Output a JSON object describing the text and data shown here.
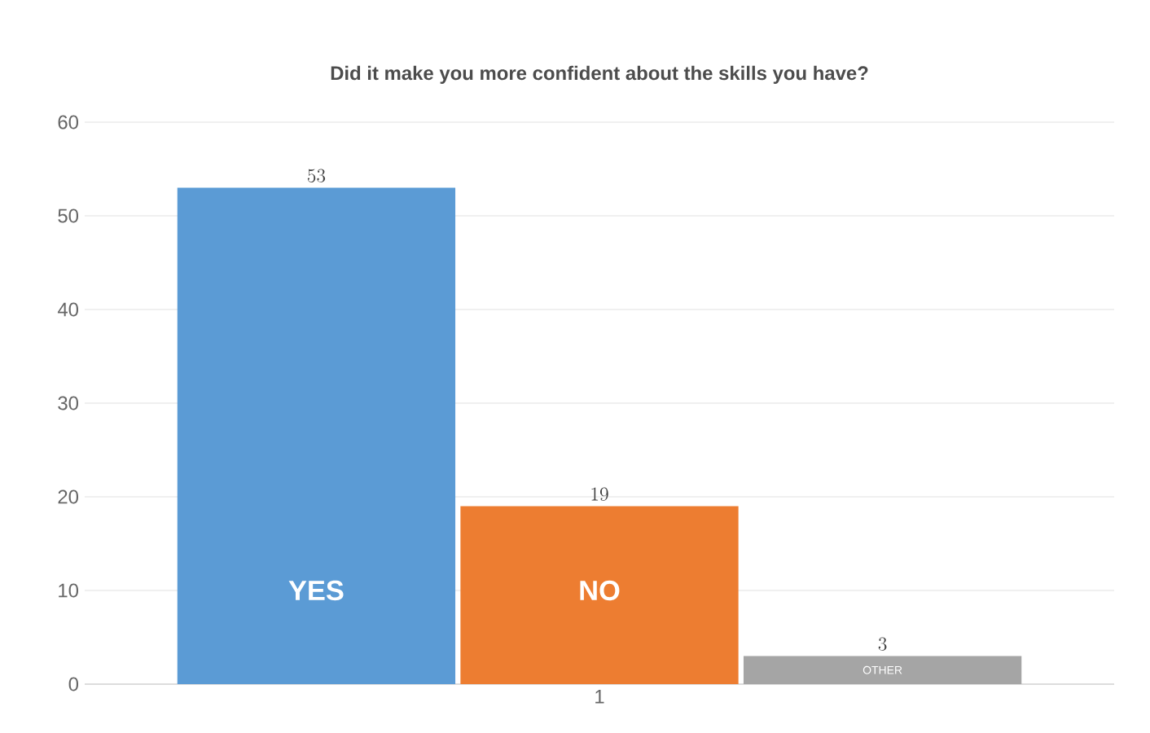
{
  "chart_data": {
    "type": "bar",
    "title": "Did it make you more confident about the skills you have?",
    "categories": [
      "1"
    ],
    "series": [
      {
        "name": "YES",
        "color": "#5b9bd5",
        "values": [
          53
        ]
      },
      {
        "name": "NO",
        "color": "#ed7d31",
        "values": [
          19
        ]
      },
      {
        "name": "OTHER",
        "color": "#a5a5a5",
        "values": [
          3
        ]
      }
    ],
    "ylim": [
      0,
      60
    ],
    "yticks": [
      0,
      10,
      20,
      30,
      40,
      50,
      60
    ],
    "grid": "y",
    "data_labels": true
  }
}
